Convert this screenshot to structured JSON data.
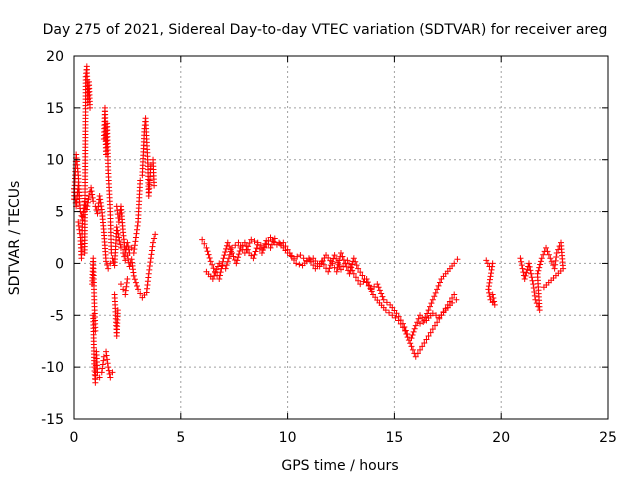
{
  "chart_data": {
    "type": "scatter",
    "title": "Day 275 of 2021, Sidereal Day-to-day VTEC variation (SDTVAR) for receiver areg",
    "xlabel": "GPS time / hours",
    "ylabel": "SDTVAR / TECUs",
    "xlim": [
      0,
      25
    ],
    "ylim": [
      -15,
      20
    ],
    "xticks": [
      0,
      5,
      10,
      15,
      20,
      25
    ],
    "yticks": [
      -15,
      -10,
      -5,
      0,
      5,
      10,
      15,
      20
    ],
    "grid": true,
    "marker": "+",
    "series": [
      {
        "name": "SDTVAR",
        "color": "#ff0000",
        "tracks": [
          [
            [
              0.0,
              7.2
            ],
            [
              0.1,
              5.5
            ],
            [
              0.2,
              7.5
            ],
            [
              0.3,
              5.0
            ],
            [
              0.4,
              4.2
            ],
            [
              0.5,
              6.0
            ],
            [
              0.6,
              5.2
            ],
            [
              0.7,
              6.5
            ],
            [
              0.8,
              7.3
            ],
            [
              0.9,
              6.0
            ],
            [
              1.0,
              5.5
            ],
            [
              1.1,
              4.8
            ],
            [
              1.2,
              6.5
            ],
            [
              1.3,
              5.2
            ],
            [
              1.4,
              3.0
            ],
            [
              1.5,
              0.2
            ],
            [
              1.6,
              -0.5
            ],
            [
              1.7,
              0.0
            ],
            [
              1.8,
              0.5
            ],
            [
              1.9,
              -0.2
            ],
            [
              2.0,
              3.5
            ],
            [
              2.1,
              2.5
            ],
            [
              2.2,
              1.5
            ],
            [
              2.3,
              1.0
            ],
            [
              2.4,
              0.3
            ],
            [
              2.5,
              0.8
            ],
            [
              2.6,
              -0.3
            ],
            [
              2.7,
              0.4
            ],
            [
              2.8,
              -1.2
            ],
            [
              3.0,
              -2.5
            ],
            [
              3.2,
              -3.3
            ],
            [
              3.4,
              -2.8
            ],
            [
              3.5,
              -1.0
            ],
            [
              3.6,
              0.5
            ],
            [
              3.7,
              2.0
            ],
            [
              3.8,
              2.8
            ]
          ],
          [
            [
              0.0,
              6.2
            ],
            [
              0.1,
              10.5
            ],
            [
              0.2,
              8.5
            ],
            [
              0.25,
              6.5
            ]
          ],
          [
            [
              0.2,
              4.0
            ],
            [
              0.3,
              2.5
            ],
            [
              0.35,
              0.5
            ],
            [
              0.4,
              4.5
            ]
          ],
          [
            [
              0.5,
              1.0
            ],
            [
              0.55,
              18.0
            ],
            [
              0.6,
              19.0
            ],
            [
              0.65,
              15.5
            ],
            [
              0.7,
              17.5
            ],
            [
              0.75,
              15.0
            ]
          ],
          [
            [
              0.9,
              -5.0
            ],
            [
              0.95,
              -10.0
            ],
            [
              1.0,
              -11.5
            ],
            [
              1.05,
              -8.5
            ],
            [
              1.1,
              -10.5
            ],
            [
              1.2,
              -11.0
            ],
            [
              1.3,
              -10.5
            ],
            [
              1.4,
              -9.0
            ],
            [
              1.5,
              -8.5
            ],
            [
              1.6,
              -10.0
            ],
            [
              1.7,
              -11.0
            ],
            [
              1.8,
              -10.5
            ]
          ],
          [
            [
              0.85,
              -2.0
            ],
            [
              0.9,
              0.5
            ],
            [
              0.95,
              -3.5
            ],
            [
              1.0,
              -6.5
            ]
          ],
          [
            [
              1.4,
              12.0
            ],
            [
              1.45,
              15.0
            ],
            [
              1.5,
              10.5
            ],
            [
              1.55,
              13.5
            ],
            [
              1.6,
              9.0
            ],
            [
              1.7,
              5.0
            ],
            [
              1.75,
              1.0
            ]
          ],
          [
            [
              1.9,
              -3.0
            ],
            [
              1.95,
              -5.0
            ],
            [
              2.0,
              -7.0
            ],
            [
              2.05,
              -4.5
            ]
          ],
          [
            [
              2.0,
              5.5
            ],
            [
              2.1,
              4.0
            ],
            [
              2.2,
              5.5
            ],
            [
              2.3,
              3.0
            ],
            [
              2.4,
              1.0
            ],
            [
              2.5,
              2.0
            ],
            [
              2.6,
              1.0
            ],
            [
              2.7,
              1.5
            ],
            [
              2.8,
              1.0
            ],
            [
              2.9,
              2.5
            ],
            [
              3.0,
              4.0
            ],
            [
              3.1,
              8.0
            ],
            [
              3.2,
              8.5
            ],
            [
              3.3,
              13.0
            ],
            [
              3.35,
              14.0
            ],
            [
              3.4,
              12.0
            ],
            [
              3.45,
              10.0
            ],
            [
              3.5,
              6.5
            ],
            [
              3.55,
              8.0
            ],
            [
              3.6,
              9.5
            ],
            [
              3.7,
              10.0
            ],
            [
              3.75,
              7.5
            ]
          ],
          [
            [
              2.2,
              -2.0
            ],
            [
              2.3,
              -2.5
            ],
            [
              2.4,
              -3.0
            ],
            [
              2.5,
              -1.5
            ]
          ],
          [
            [
              6.0,
              2.3
            ],
            [
              6.2,
              1.5
            ],
            [
              6.4,
              0.2
            ],
            [
              6.6,
              -0.8
            ],
            [
              6.8,
              -1.5
            ],
            [
              7.0,
              0.5
            ],
            [
              7.2,
              2.0
            ],
            [
              7.4,
              1.0
            ],
            [
              7.6,
              0.0
            ],
            [
              7.8,
              1.5
            ],
            [
              8.0,
              2.0
            ],
            [
              8.2,
              1.0
            ],
            [
              8.4,
              0.5
            ],
            [
              8.6,
              1.8
            ],
            [
              8.8,
              1.0
            ],
            [
              9.0,
              2.2
            ],
            [
              9.2,
              1.5
            ],
            [
              9.4,
              2.4
            ],
            [
              9.6,
              2.0
            ],
            [
              9.8,
              1.5
            ],
            [
              10.0,
              1.0
            ],
            [
              10.3,
              0.5
            ],
            [
              10.6,
              0.8
            ],
            [
              10.9,
              0.2
            ],
            [
              11.2,
              0.5
            ],
            [
              11.5,
              -0.3
            ],
            [
              11.8,
              0.8
            ],
            [
              12.1,
              0.0
            ],
            [
              12.3,
              -0.8
            ],
            [
              12.5,
              1.0
            ],
            [
              12.7,
              0.0
            ],
            [
              12.9,
              -1.0
            ],
            [
              13.1,
              0.5
            ],
            [
              13.3,
              -0.5
            ],
            [
              13.6,
              -1.5
            ],
            [
              13.9,
              -2.5
            ],
            [
              14.2,
              -2.0
            ],
            [
              14.5,
              -3.5
            ],
            [
              14.8,
              -4.0
            ],
            [
              15.1,
              -4.8
            ],
            [
              15.4,
              -5.8
            ],
            [
              15.6,
              -6.8
            ],
            [
              15.8,
              -7.2
            ],
            [
              16.0,
              -6.0
            ],
            [
              16.2,
              -5.0
            ],
            [
              16.4,
              -5.5
            ],
            [
              16.6,
              -4.5
            ],
            [
              16.8,
              -3.5
            ],
            [
              17.0,
              -2.5
            ],
            [
              17.2,
              -1.5
            ],
            [
              17.4,
              -1.0
            ],
            [
              17.6,
              -0.5
            ],
            [
              17.8,
              0.0
            ],
            [
              17.95,
              0.4
            ]
          ],
          [
            [
              6.2,
              -0.8
            ],
            [
              6.5,
              -1.5
            ],
            [
              6.8,
              0.0
            ],
            [
              7.1,
              -0.5
            ],
            [
              7.4,
              1.5
            ],
            [
              7.7,
              2.0
            ],
            [
              8.0,
              1.0
            ],
            [
              8.3,
              2.3
            ],
            [
              8.6,
              2.0
            ],
            [
              8.9,
              1.5
            ],
            [
              9.2,
              2.5
            ],
            [
              9.5,
              1.8
            ],
            [
              9.8,
              2.0
            ],
            [
              10.1,
              1.0
            ],
            [
              10.4,
              0.0
            ],
            [
              10.7,
              -0.2
            ],
            [
              11.0,
              0.5
            ],
            [
              11.3,
              -0.5
            ],
            [
              11.6,
              0.2
            ],
            [
              11.9,
              -0.8
            ],
            [
              12.2,
              0.8
            ],
            [
              12.5,
              -0.6
            ],
            [
              12.8,
              0.3
            ],
            [
              13.1,
              -1.0
            ],
            [
              13.4,
              -2.0
            ],
            [
              13.7,
              -1.5
            ],
            [
              14.0,
              -3.0
            ],
            [
              14.3,
              -3.8
            ],
            [
              14.6,
              -4.5
            ],
            [
              14.9,
              -5.0
            ],
            [
              15.2,
              -5.5
            ],
            [
              15.5,
              -6.5
            ],
            [
              15.8,
              -8.0
            ],
            [
              16.0,
              -9.0
            ],
            [
              16.3,
              -8.0
            ],
            [
              16.6,
              -7.0
            ],
            [
              16.9,
              -6.0
            ],
            [
              17.2,
              -5.0
            ],
            [
              17.5,
              -4.0
            ],
            [
              17.8,
              -3.0
            ]
          ],
          [
            [
              16.2,
              -5.8
            ],
            [
              16.5,
              -5.5
            ],
            [
              16.8,
              -4.8
            ],
            [
              17.1,
              -5.2
            ],
            [
              17.4,
              -4.5
            ],
            [
              17.7,
              -3.8
            ],
            [
              17.9,
              -3.5
            ]
          ],
          [
            [
              19.3,
              0.3
            ],
            [
              19.45,
              -0.3
            ],
            [
              19.6,
              0.0
            ],
            [
              19.4,
              -2.5
            ],
            [
              19.5,
              -3.5
            ],
            [
              19.7,
              -4.0
            ],
            [
              19.6,
              -3.0
            ]
          ],
          [
            [
              20.9,
              0.5
            ],
            [
              21.1,
              -1.5
            ],
            [
              21.3,
              0.0
            ],
            [
              21.5,
              -2.0
            ],
            [
              21.6,
              -3.5
            ],
            [
              21.8,
              -4.5
            ],
            [
              21.7,
              -1.0
            ],
            [
              21.9,
              0.5
            ],
            [
              22.1,
              1.5
            ],
            [
              22.3,
              0.5
            ],
            [
              22.5,
              -0.5
            ],
            [
              22.6,
              1.0
            ],
            [
              22.8,
              2.0
            ],
            [
              22.9,
              -0.5
            ],
            [
              22.0,
              -2.3
            ]
          ]
        ]
      }
    ]
  }
}
